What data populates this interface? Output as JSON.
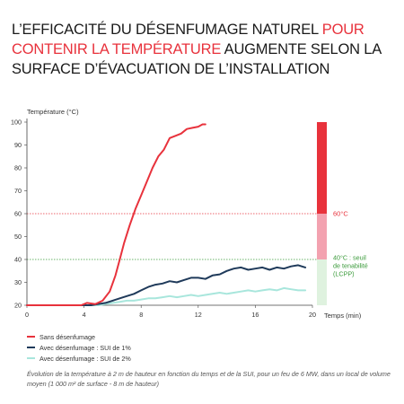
{
  "title": {
    "part1": "L’EFFICACITÉ DU DÉSENFUMAGE NATUREL ",
    "highlight": "POUR CONTENIR LA TEMPÉRATURE",
    "part2": " AUGMENTE SELON LA SURFACE D’ÉVACUATION DE L’INSTALLATION"
  },
  "legend": [
    {
      "label": "Sans désenfumage",
      "color": "#e8323c"
    },
    {
      "label": "Avec désenfumage : SUI de 1%",
      "color": "#1f3a5a"
    },
    {
      "label": "Avec désenfumage : SUI de 2%",
      "color": "#a8e6dc"
    }
  ],
  "caption": "Évolution de la température à 2 m de hauteur en fonction du temps et de la SUI, pour un feu de 6 MW, dans un local de volume moyen (1 000 m² de surface - 8 m de hauteur)",
  "chart_data": {
    "type": "line",
    "ylabel": "Température (°C)",
    "xlabel": "Temps (min)",
    "xlim": [
      0,
      20
    ],
    "ylim": [
      20,
      100
    ],
    "xticks": [
      0,
      4,
      8,
      12,
      16,
      20
    ],
    "yticks": [
      20,
      30,
      40,
      50,
      60,
      70,
      80,
      90,
      100
    ],
    "series": [
      {
        "name": "Sans désenfumage",
        "color": "#e8323c",
        "x": [
          0,
          3.8,
          4.2,
          4.8,
          5.3,
          5.8,
          6.2,
          6.5,
          6.8,
          7.2,
          7.6,
          8.0,
          8.4,
          8.8,
          9.2,
          9.6,
          10.0,
          10.4,
          10.8,
          11.2,
          11.6,
          12.0,
          12.3,
          12.5
        ],
        "y": [
          20,
          20,
          21,
          20.5,
          22,
          26,
          33,
          40,
          47,
          55,
          62,
          68,
          74,
          80,
          85,
          88,
          93,
          94,
          95,
          97,
          97.5,
          98,
          99,
          99
        ]
      },
      {
        "name": "Avec désenfumage : SUI de 1%",
        "color": "#1f3a5a",
        "x": [
          0,
          4.5,
          5.0,
          5.5,
          6.0,
          6.5,
          7.0,
          7.5,
          8.0,
          8.5,
          9.0,
          9.5,
          10.0,
          10.5,
          11.0,
          11.5,
          12.0,
          12.5,
          13.0,
          13.5,
          14.0,
          14.5,
          15.0,
          15.5,
          16.0,
          16.5,
          17.0,
          17.5,
          18.0,
          18.5,
          19.0,
          19.5
        ],
        "y": [
          20,
          20,
          20.5,
          21,
          22,
          23,
          24,
          25,
          26.5,
          28,
          29,
          29.5,
          30.5,
          30,
          31,
          32,
          32,
          31.5,
          33,
          33.5,
          35,
          36,
          36.5,
          35.5,
          36,
          36.5,
          35.5,
          36.5,
          36,
          37,
          37.5,
          36.5
        ]
      },
      {
        "name": "Avec désenfumage : SUI de 2%",
        "color": "#a8e6dc",
        "x": [
          0,
          5.0,
          5.5,
          6.0,
          6.5,
          7.0,
          7.5,
          8.0,
          8.5,
          9.0,
          9.5,
          10.0,
          10.5,
          11.0,
          11.5,
          12.0,
          12.5,
          13.0,
          13.5,
          14.0,
          14.5,
          15.0,
          15.5,
          16.0,
          16.5,
          17.0,
          17.5,
          18.0,
          18.5,
          19.0,
          19.5
        ],
        "y": [
          20,
          20,
          20.5,
          21,
          21.5,
          22,
          22,
          22.5,
          23,
          23,
          23.5,
          24,
          23.5,
          24,
          24.5,
          24,
          24.5,
          25,
          25.5,
          25,
          25.5,
          26,
          26.5,
          26,
          26.5,
          27,
          26.5,
          27.5,
          27,
          26.5,
          26.5
        ]
      }
    ],
    "thresholds": [
      {
        "y": 60,
        "label": "60°C",
        "color": "#e8323c"
      },
      {
        "y": 40,
        "label": "40°C : seuil de tenabilité (LCPP)",
        "color": "#3a9a3a"
      }
    ],
    "scale_bar": [
      {
        "from": 60,
        "to": 100,
        "color": "#e8323c"
      },
      {
        "from": 40,
        "to": 60,
        "color": "#f3a2b0"
      },
      {
        "from": 20,
        "to": 40,
        "color": "#dff2df"
      }
    ],
    "grid": false
  }
}
